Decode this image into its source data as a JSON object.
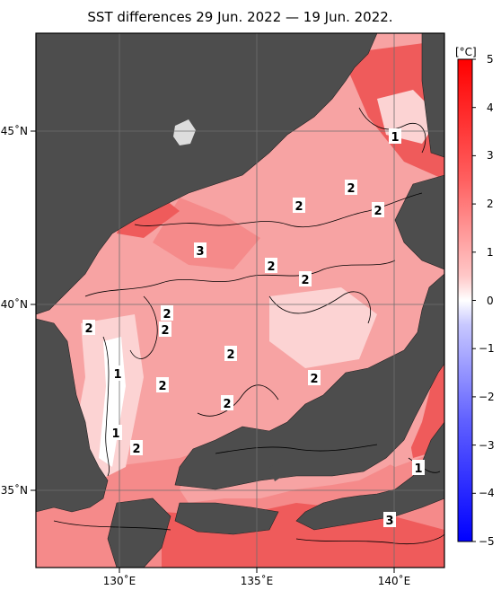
{
  "title": "SST differences 29 Jun. 2022 — 19 Jun. 2022.",
  "colors": {
    "land": "#4d4d4d",
    "sea_base": "#f7a3a3",
    "warm1": "#fcd3d3",
    "warm2": "#f58a8a",
    "warm3": "#ef5b5b",
    "warm4": "#e53030",
    "white": "#ffffff"
  },
  "axes": {
    "lat_labels": [
      "45˚N",
      "40˚N",
      "35˚N"
    ],
    "lon_labels": [
      "130˚E",
      "135˚E",
      "140˚E"
    ]
  },
  "colorbar": {
    "unit": "[°C]",
    "ticks": [
      "5",
      "4",
      "3",
      "2",
      "1",
      "0",
      "−1",
      "−2",
      "−3",
      "−4",
      "−5"
    ],
    "colors": [
      "#ff0000",
      "#ff2b2b",
      "#ff5555",
      "#ff8080",
      "#ffaaaa",
      "#ffd5d5",
      "#ffffff",
      "#d5d5ff",
      "#aaaaff",
      "#8080ff",
      "#5555ff",
      "#2b2bff",
      "#0000ff"
    ]
  },
  "value_labels": [
    "1",
    "2",
    "2",
    "2",
    "3",
    "2",
    "2",
    "2",
    "2",
    "2",
    "2",
    "1",
    "2",
    "2",
    "2",
    "1",
    "2",
    "1",
    "3"
  ]
}
